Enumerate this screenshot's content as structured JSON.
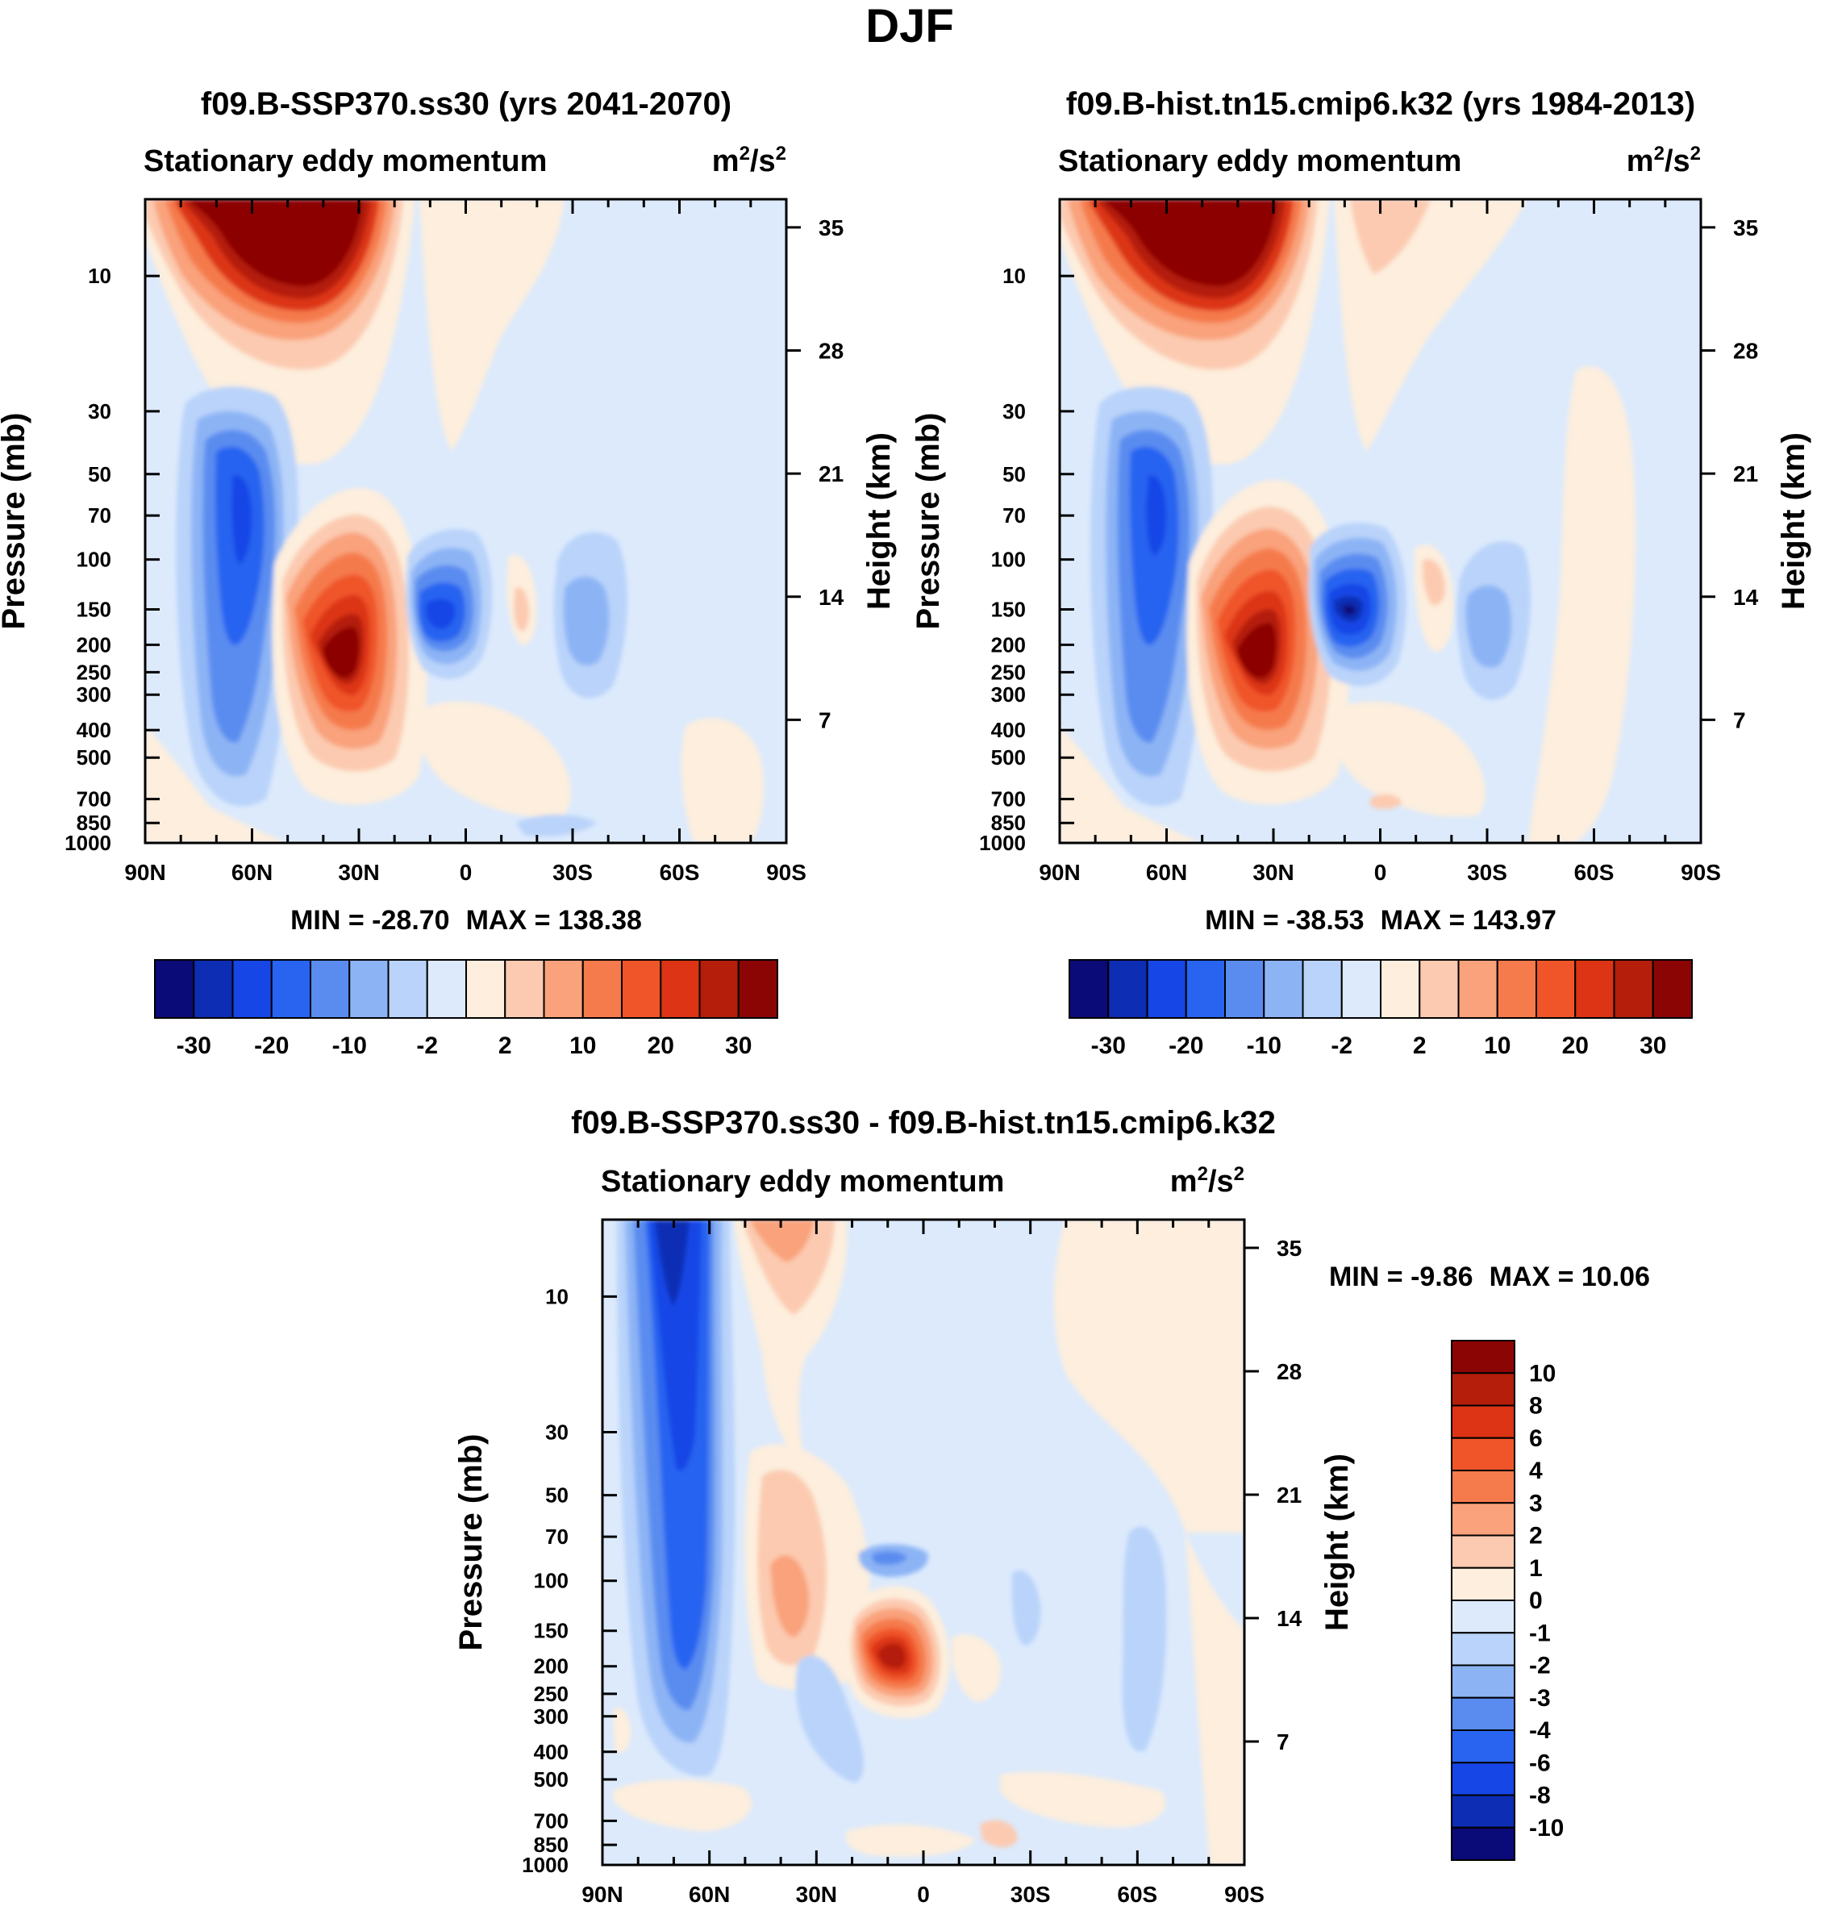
{
  "figure_title": "DJF",
  "colors": {
    "main_levels": [
      "#0a0a78",
      "#0c2db4",
      "#1646e6",
      "#2864f0",
      "#5a8cf0",
      "#8cb4f5",
      "#b9d3fa",
      "#dceafc",
      "#fdeedd",
      "#fccab0",
      "#f9a27c",
      "#f57a4c",
      "#f0552a",
      "#dc3414",
      "#b41e0a",
      "#8c0505"
    ],
    "diff_levels": [
      "#0a0a78",
      "#0c2db4",
      "#1646e6",
      "#2864f0",
      "#5a8cf0",
      "#8cb4f5",
      "#b9d3fa",
      "#dceafc",
      "#fdeedd",
      "#fccab0",
      "#f9a27c",
      "#f57a4c",
      "#f0552a",
      "#dc3414",
      "#b41e0a",
      "#8c0505"
    ]
  },
  "chart_data": [
    {
      "type": "contour",
      "title": "f09.B-SSP370.ss30 (yrs 2041-2070)",
      "left_label": "Stationary eddy momentum",
      "units": "m²/s²",
      "ylabel": "Pressure (mb)",
      "ylabel_right": "Height (km)",
      "x_ticks": [
        "90N",
        "60N",
        "30N",
        "0",
        "30S",
        "60S",
        "90S"
      ],
      "x_range": [
        90,
        -90
      ],
      "pressure_ticks": [
        "10",
        "30",
        "50",
        "70",
        "100",
        "150",
        "200",
        "250",
        "300",
        "400",
        "500",
        "700",
        "850",
        "1000"
      ],
      "height_ticks": [
        "35",
        "28",
        "21",
        "14",
        "7"
      ],
      "min_label": "MIN = -28.70",
      "max_label": "MAX = 138.38",
      "min": -28.7,
      "max": 138.38,
      "colorbar_labels": [
        "-30",
        "-20",
        "-10",
        "-2",
        "2",
        "10",
        "20",
        "30"
      ],
      "features": [
        {
          "lat": 65,
          "height": 35,
          "value": 138,
          "note": "stratospheric maximum"
        },
        {
          "lat": 61,
          "height": 18,
          "value": -28.7,
          "note": "minimum"
        },
        {
          "lat": 30,
          "height": 12,
          "value": 34
        },
        {
          "lat": 7,
          "height": 14,
          "value": -18
        },
        {
          "lat": -16,
          "height": 14,
          "value": 5
        },
        {
          "lat": -30,
          "height": 14,
          "value": -6
        }
      ]
    },
    {
      "type": "contour",
      "title": "f09.B-hist.tn15.cmip6.k32 (yrs 1984-2013)",
      "left_label": "Stationary eddy momentum",
      "units": "m²/s²",
      "ylabel": "Pressure (mb)",
      "ylabel_right": "Height (km)",
      "x_ticks": [
        "90N",
        "60N",
        "30N",
        "0",
        "30S",
        "60S",
        "90S"
      ],
      "x_range": [
        90,
        -90
      ],
      "pressure_ticks": [
        "10",
        "30",
        "50",
        "70",
        "100",
        "150",
        "200",
        "250",
        "300",
        "400",
        "500",
        "700",
        "850",
        "1000"
      ],
      "height_ticks": [
        "35",
        "28",
        "21",
        "14",
        "7"
      ],
      "min_label": "MIN = -38.53",
      "max_label": "MAX = 143.97",
      "min": -38.53,
      "max": 143.97,
      "colorbar_labels": [
        "-30",
        "-20",
        "-10",
        "-2",
        "2",
        "10",
        "20",
        "30"
      ],
      "features": [
        {
          "lat": 65,
          "height": 35,
          "value": 143,
          "note": "stratospheric maximum"
        },
        {
          "lat": 62,
          "height": 18,
          "value": -24
        },
        {
          "lat": 30,
          "height": 12,
          "value": 34
        },
        {
          "lat": 8,
          "height": 14,
          "value": -38.5,
          "note": "minimum"
        },
        {
          "lat": -18,
          "height": 15,
          "value": 5
        },
        {
          "lat": -30,
          "height": 14,
          "value": -8
        }
      ]
    },
    {
      "type": "contour",
      "title": "f09.B-SSP370.ss30 - f09.B-hist.tn15.cmip6.k32",
      "left_label": "Stationary eddy momentum",
      "units": "m²/s²",
      "ylabel": "Pressure (mb)",
      "ylabel_right": "Height (km)",
      "x_ticks": [
        "90N",
        "60N",
        "30N",
        "0",
        "30S",
        "60S",
        "90S"
      ],
      "x_range": [
        90,
        -90
      ],
      "pressure_ticks": [
        "10",
        "30",
        "50",
        "70",
        "100",
        "150",
        "200",
        "250",
        "300",
        "400",
        "500",
        "700",
        "850",
        "1000"
      ],
      "height_ticks": [
        "35",
        "28",
        "21",
        "14",
        "7"
      ],
      "min_label": "MIN =  -9.86",
      "max_label": "MAX =  10.06",
      "min": -9.86,
      "max": 10.06,
      "colorbar_labels": [
        "10",
        "8",
        "6",
        "4",
        "3",
        "2",
        "1",
        "0",
        "-1",
        "-2",
        "-3",
        "-4",
        "-6",
        "-8",
        "-10"
      ],
      "features": [
        {
          "lat": 72,
          "height": 34,
          "value": -9.9,
          "note": "minimum"
        },
        {
          "lat": 64,
          "height": 16,
          "value": -5
        },
        {
          "lat": 38,
          "height": 34,
          "value": 3
        },
        {
          "lat": 37,
          "height": 14,
          "value": 2
        },
        {
          "lat": 6,
          "height": 13,
          "value": 10,
          "note": "maximum"
        },
        {
          "lat": 12,
          "height": 17,
          "value": -2
        },
        {
          "lat": -62,
          "height": 14,
          "value": -1.5
        }
      ]
    }
  ]
}
